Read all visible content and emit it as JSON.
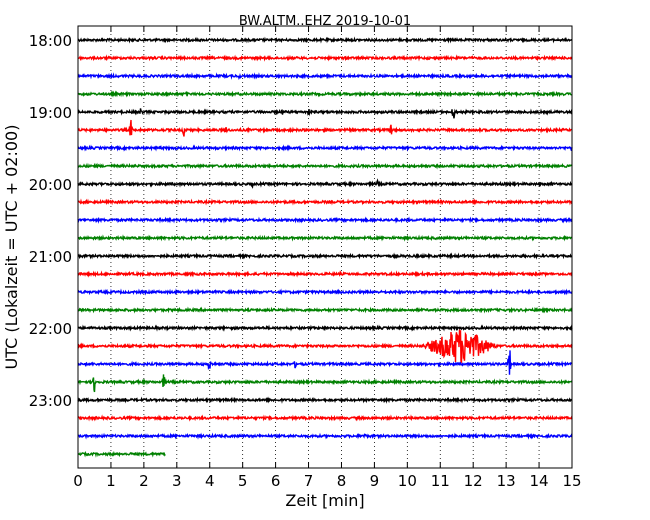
{
  "chart_data": {
    "type": "line",
    "title": "BW.ALTM..EHZ 2019-10-01",
    "xlabel": "Zeit  [min]",
    "ylabel": "UTC (Lokalzeit = UTC + 02:00)",
    "xlim": [
      0,
      15
    ],
    "x_ticks": [
      "0",
      "1",
      "2",
      "3",
      "4",
      "5",
      "6",
      "7",
      "8",
      "9",
      "10",
      "11",
      "12",
      "13",
      "14",
      "15"
    ],
    "y_ticks": [
      {
        "label": "18:00",
        "row": 0
      },
      {
        "label": "19:00",
        "row": 4
      },
      {
        "label": "20:00",
        "row": 8
      },
      {
        "label": "21:00",
        "row": 12
      },
      {
        "label": "22:00",
        "row": 16
      },
      {
        "label": "23:00",
        "row": 20
      }
    ],
    "grid": true,
    "colors": [
      "#000000",
      "#ff0000",
      "#0000ff",
      "#008000"
    ],
    "series": [
      {
        "start": "18:00",
        "color": "#000000",
        "end_min": 15,
        "events": []
      },
      {
        "start": "18:15",
        "color": "#ff0000",
        "end_min": 15,
        "events": []
      },
      {
        "start": "18:30",
        "color": "#0000ff",
        "end_min": 15,
        "events": [
          {
            "t": 4.9,
            "amp": 3
          }
        ]
      },
      {
        "start": "18:45",
        "color": "#008000",
        "end_min": 15,
        "events": [
          {
            "t": 3.3,
            "amp": 3
          }
        ]
      },
      {
        "start": "19:00",
        "color": "#000000",
        "end_min": 15,
        "events": [
          {
            "t": 1.9,
            "amp": 4
          },
          {
            "t": 6.2,
            "amp": 4
          },
          {
            "t": 7.0,
            "amp": 4
          },
          {
            "t": 11.4,
            "amp": 11
          }
        ]
      },
      {
        "start": "19:15",
        "color": "#ff0000",
        "end_min": 15,
        "events": [
          {
            "t": 1.6,
            "amp": 12
          },
          {
            "t": 3.2,
            "amp": 10
          },
          {
            "t": 4.5,
            "amp": 6
          },
          {
            "t": 9.5,
            "amp": 7
          }
        ]
      },
      {
        "start": "19:30",
        "color": "#0000ff",
        "end_min": 15,
        "events": [
          {
            "t": 2.5,
            "amp": 3
          },
          {
            "t": 15.0,
            "amp": 4
          }
        ]
      },
      {
        "start": "19:45",
        "color": "#008000",
        "end_min": 15,
        "events": []
      },
      {
        "start": "20:00",
        "color": "#000000",
        "end_min": 15,
        "events": [
          {
            "t": 5.3,
            "amp": 3
          },
          {
            "t": 9.1,
            "amp": 4
          }
        ]
      },
      {
        "start": "20:15",
        "color": "#ff0000",
        "end_min": 15,
        "events": []
      },
      {
        "start": "20:30",
        "color": "#0000ff",
        "end_min": 15,
        "events": []
      },
      {
        "start": "20:45",
        "color": "#008000",
        "end_min": 15,
        "events": []
      },
      {
        "start": "21:00",
        "color": "#000000",
        "end_min": 15,
        "events": []
      },
      {
        "start": "21:15",
        "color": "#ff0000",
        "end_min": 15,
        "events": []
      },
      {
        "start": "21:30",
        "color": "#0000ff",
        "end_min": 15,
        "events": []
      },
      {
        "start": "21:45",
        "color": "#008000",
        "end_min": 15,
        "events": []
      },
      {
        "start": "22:00",
        "color": "#000000",
        "end_min": 15,
        "events": []
      },
      {
        "start": "22:15",
        "color": "#ff0000",
        "end_min": 15,
        "events": [
          {
            "t": 11.6,
            "amp": 19,
            "width": 1.2
          }
        ]
      },
      {
        "start": "22:30",
        "color": "#0000ff",
        "end_min": 15,
        "events": [
          {
            "t": 4.0,
            "amp": 12
          },
          {
            "t": 6.6,
            "amp": 5
          },
          {
            "t": 13.1,
            "amp": 20
          }
        ]
      },
      {
        "start": "22:45",
        "color": "#008000",
        "end_min": 15,
        "events": [
          {
            "t": 0.5,
            "amp": 12
          },
          {
            "t": 2.6,
            "amp": 9
          }
        ]
      },
      {
        "start": "23:00",
        "color": "#000000",
        "end_min": 15,
        "events": []
      },
      {
        "start": "23:15",
        "color": "#ff0000",
        "end_min": 15,
        "events": []
      },
      {
        "start": "23:30",
        "color": "#0000ff",
        "end_min": 15,
        "events": [
          {
            "t": 8.7,
            "amp": 3
          }
        ]
      },
      {
        "start": "23:45",
        "color": "#008000",
        "end_min": 2.65,
        "events": []
      }
    ]
  }
}
